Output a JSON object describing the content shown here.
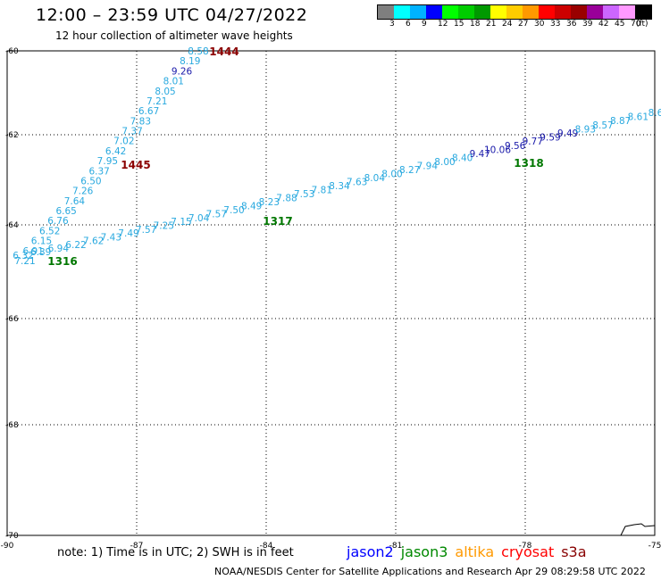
{
  "header": {
    "title": "12:00 – 23:59 UTC 04/27/2022",
    "subtitle": "12 hour collection of altimeter wave heights"
  },
  "legend": {
    "colors": [
      "#7f7f7f",
      "#00ffff",
      "#00b2ff",
      "#0000ff",
      "#00ff00",
      "#00cc00",
      "#009900",
      "#ffff00",
      "#ffcc00",
      "#ff9900",
      "#ff0000",
      "#cc0000",
      "#990000",
      "#990099",
      "#cc66ff",
      "#ff99ff",
      "#000000"
    ],
    "labels": [
      "3",
      "6",
      "9",
      "12",
      "15",
      "18",
      "21",
      "24",
      "27",
      "30",
      "33",
      "36",
      "39",
      "42",
      "45",
      "70",
      "(ft)"
    ]
  },
  "map": {
    "lon_ticks": [
      "-90",
      "-87",
      "-84",
      "-81",
      "-78",
      "-75"
    ],
    "lat_ticks": [
      "-60",
      "-62",
      "-64",
      "-66",
      "-68",
      "-70"
    ]
  },
  "tracks": [
    {
      "name": "1444",
      "color": "#8b0000",
      "values": [
        "8.58",
        "8.19",
        "9.26",
        "8.01",
        "8.05",
        "7.21",
        "6.67",
        "7.83",
        "7.37",
        "7.02",
        "6.42",
        "7.95",
        "6.37",
        "6.50",
        "7.26",
        "7.64",
        "6.65",
        "6.76",
        "6.52",
        "6.15",
        "6.91",
        "7.21"
      ],
      "value_colors": [
        "#29a9df",
        "#29a9df",
        "#1a1aaa",
        "#29a9df",
        "#29a9df",
        "#29a9df",
        "#29a9df",
        "#29a9df",
        "#29a9df",
        "#29a9df",
        "#29a9df",
        "#29a9df",
        "#29a9df",
        "#29a9df",
        "#29a9df",
        "#29a9df",
        "#29a9df",
        "#29a9df",
        "#29a9df",
        "#29a9df",
        "#29a9df",
        "#29a9df"
      ]
    },
    {
      "name": "1445",
      "color": "#8b0000"
    },
    {
      "name": "1316",
      "color": "#007700",
      "values": [
        "6.32",
        "6.39",
        "6.94",
        "6.22",
        "7.62",
        "7.43",
        "7.49",
        "7.57",
        "7.25",
        "7.15",
        "7.04",
        "7.57",
        "7.50",
        "8.49",
        "8.23",
        "7.88",
        "7.53",
        "7.81",
        "8.34",
        "7.63",
        "8.04",
        "8.00",
        "8.27",
        "7.94",
        "8.00",
        "8.40",
        "9.47",
        "10.06",
        "9.56",
        "9.77",
        "9.59",
        "9.49",
        "8.93",
        "8.57",
        "8.87",
        "8.61",
        "8.6"
      ],
      "value_colors": [
        "#29a9df",
        "#29a9df",
        "#29a9df",
        "#29a9df",
        "#29a9df",
        "#29a9df",
        "#29a9df",
        "#29a9df",
        "#29a9df",
        "#29a9df",
        "#29a9df",
        "#29a9df",
        "#29a9df",
        "#29a9df",
        "#29a9df",
        "#29a9df",
        "#29a9df",
        "#29a9df",
        "#29a9df",
        "#29a9df",
        "#29a9df",
        "#29a9df",
        "#29a9df",
        "#29a9df",
        "#29a9df",
        "#29a9df",
        "#1a1aaa",
        "#1a1aaa",
        "#1a1aaa",
        "#1a1aaa",
        "#1a1aaa",
        "#1a1aaa",
        "#29a9df",
        "#29a9df",
        "#29a9df",
        "#29a9df",
        "#29a9df"
      ]
    },
    {
      "name": "1317",
      "color": "#007700"
    },
    {
      "name": "1318",
      "color": "#007700"
    }
  ],
  "footer": {
    "note": "note: 1) Time is in UTC; 2) SWH is in feet",
    "credit": "NOAA/NESDIS Center for Satellite Applications and Research    Apr 29 08:29:58 UTC 2022",
    "satellites": [
      {
        "name": "jason2",
        "color": "#0000ff"
      },
      {
        "name": "jason3",
        "color": "#008800"
      },
      {
        "name": "altika",
        "color": "#ff9900"
      },
      {
        "name": "cryosat",
        "color": "#ff0000"
      },
      {
        "name": "s3a",
        "color": "#880000"
      }
    ]
  }
}
